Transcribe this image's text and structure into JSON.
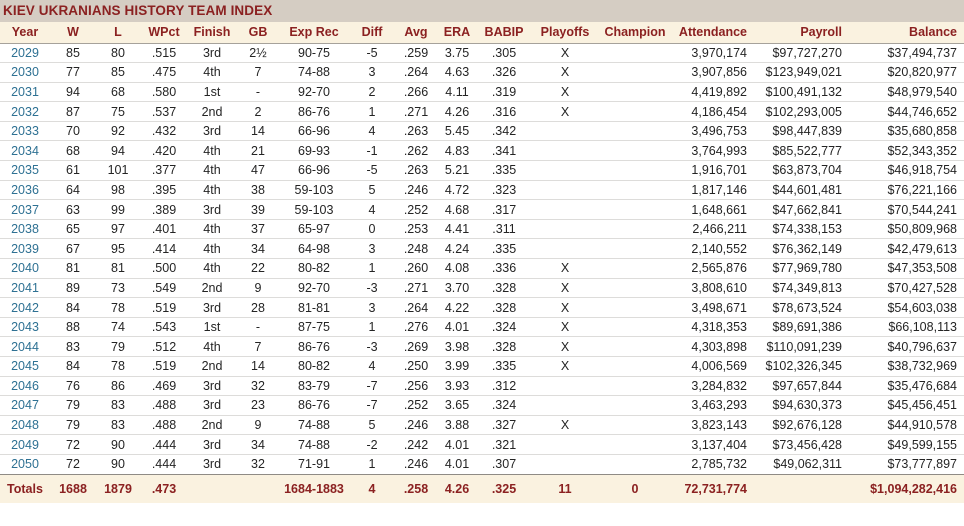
{
  "title": "KIEV UKRANIANS HISTORY TEAM INDEX",
  "colors": {
    "title_bar_bg": "#d5cdc3",
    "header_bg": "#faf2e0",
    "accent_maroon": "#8b2121",
    "year_link_blue": "#2e7193",
    "row_bg": "#ffffff"
  },
  "table": {
    "columns": [
      {
        "key": "year",
        "label": "Year",
        "align": "center"
      },
      {
        "key": "w",
        "label": "W",
        "align": "center"
      },
      {
        "key": "l",
        "label": "L",
        "align": "center"
      },
      {
        "key": "wpct",
        "label": "WPct",
        "align": "center"
      },
      {
        "key": "finish",
        "label": "Finish",
        "align": "center"
      },
      {
        "key": "gb",
        "label": "GB",
        "align": "center"
      },
      {
        "key": "exprec",
        "label": "Exp Rec",
        "align": "center"
      },
      {
        "key": "diff",
        "label": "Diff",
        "align": "center"
      },
      {
        "key": "avg",
        "label": "Avg",
        "align": "center"
      },
      {
        "key": "era",
        "label": "ERA",
        "align": "center"
      },
      {
        "key": "babip",
        "label": "BABIP",
        "align": "center"
      },
      {
        "key": "playoffs",
        "label": "Playoffs",
        "align": "center"
      },
      {
        "key": "champion",
        "label": "Champion",
        "align": "center"
      },
      {
        "key": "attendance",
        "label": "Attendance",
        "align": "right"
      },
      {
        "key": "payroll",
        "label": "Payroll",
        "align": "right"
      },
      {
        "key": "balance",
        "label": "Balance",
        "align": "right"
      }
    ],
    "rows": [
      [
        "2029",
        "85",
        "80",
        ".515",
        "3rd",
        "2½",
        "90-75",
        "-5",
        ".259",
        "3.75",
        ".305",
        "X",
        "",
        "3,970,174",
        "$97,727,270",
        "$37,494,737"
      ],
      [
        "2030",
        "77",
        "85",
        ".475",
        "4th",
        "7",
        "74-88",
        "3",
        ".264",
        "4.63",
        ".326",
        "X",
        "",
        "3,907,856",
        "$123,949,021",
        "$20,820,977"
      ],
      [
        "2031",
        "94",
        "68",
        ".580",
        "1st",
        "-",
        "92-70",
        "2",
        ".266",
        "4.11",
        ".319",
        "X",
        "",
        "4,419,892",
        "$100,491,132",
        "$48,979,540"
      ],
      [
        "2032",
        "87",
        "75",
        ".537",
        "2nd",
        "2",
        "86-76",
        "1",
        ".271",
        "4.26",
        ".316",
        "X",
        "",
        "4,186,454",
        "$102,293,005",
        "$44,746,652"
      ],
      [
        "2033",
        "70",
        "92",
        ".432",
        "3rd",
        "14",
        "66-96",
        "4",
        ".263",
        "5.45",
        ".342",
        "",
        "",
        "3,496,753",
        "$98,447,839",
        "$35,680,858"
      ],
      [
        "2034",
        "68",
        "94",
        ".420",
        "4th",
        "21",
        "69-93",
        "-1",
        ".262",
        "4.83",
        ".341",
        "",
        "",
        "3,764,993",
        "$85,522,777",
        "$52,343,352"
      ],
      [
        "2035",
        "61",
        "101",
        ".377",
        "4th",
        "47",
        "66-96",
        "-5",
        ".263",
        "5.21",
        ".335",
        "",
        "",
        "1,916,701",
        "$63,873,704",
        "$46,918,754"
      ],
      [
        "2036",
        "64",
        "98",
        ".395",
        "4th",
        "38",
        "59-103",
        "5",
        ".246",
        "4.72",
        ".323",
        "",
        "",
        "1,817,146",
        "$44,601,481",
        "$76,221,166"
      ],
      [
        "2037",
        "63",
        "99",
        ".389",
        "3rd",
        "39",
        "59-103",
        "4",
        ".252",
        "4.68",
        ".317",
        "",
        "",
        "1,648,661",
        "$47,662,841",
        "$70,544,241"
      ],
      [
        "2038",
        "65",
        "97",
        ".401",
        "4th",
        "37",
        "65-97",
        "0",
        ".253",
        "4.41",
        ".311",
        "",
        "",
        "2,466,211",
        "$74,338,153",
        "$50,809,968"
      ],
      [
        "2039",
        "67",
        "95",
        ".414",
        "4th",
        "34",
        "64-98",
        "3",
        ".248",
        "4.24",
        ".335",
        "",
        "",
        "2,140,552",
        "$76,362,149",
        "$42,479,613"
      ],
      [
        "2040",
        "81",
        "81",
        ".500",
        "4th",
        "22",
        "80-82",
        "1",
        ".260",
        "4.08",
        ".336",
        "X",
        "",
        "2,565,876",
        "$77,969,780",
        "$47,353,508"
      ],
      [
        "2041",
        "89",
        "73",
        ".549",
        "2nd",
        "9",
        "92-70",
        "-3",
        ".271",
        "3.70",
        ".328",
        "X",
        "",
        "3,808,610",
        "$74,349,813",
        "$70,427,528"
      ],
      [
        "2042",
        "84",
        "78",
        ".519",
        "3rd",
        "28",
        "81-81",
        "3",
        ".264",
        "4.22",
        ".328",
        "X",
        "",
        "3,498,671",
        "$78,673,524",
        "$54,603,038"
      ],
      [
        "2043",
        "88",
        "74",
        ".543",
        "1st",
        "-",
        "87-75",
        "1",
        ".276",
        "4.01",
        ".324",
        "X",
        "",
        "4,318,353",
        "$89,691,386",
        "$66,108,113"
      ],
      [
        "2044",
        "83",
        "79",
        ".512",
        "4th",
        "7",
        "86-76",
        "-3",
        ".269",
        "3.98",
        ".328",
        "X",
        "",
        "4,303,898",
        "$110,091,239",
        "$40,796,637"
      ],
      [
        "2045",
        "84",
        "78",
        ".519",
        "2nd",
        "14",
        "80-82",
        "4",
        ".250",
        "3.99",
        ".335",
        "X",
        "",
        "4,006,569",
        "$102,326,345",
        "$38,732,969"
      ],
      [
        "2046",
        "76",
        "86",
        ".469",
        "3rd",
        "32",
        "83-79",
        "-7",
        ".256",
        "3.93",
        ".312",
        "",
        "",
        "3,284,832",
        "$97,657,844",
        "$35,476,684"
      ],
      [
        "2047",
        "79",
        "83",
        ".488",
        "3rd",
        "23",
        "86-76",
        "-7",
        ".252",
        "3.65",
        ".324",
        "",
        "",
        "3,463,293",
        "$94,630,373",
        "$45,456,451"
      ],
      [
        "2048",
        "79",
        "83",
        ".488",
        "2nd",
        "9",
        "74-88",
        "5",
        ".246",
        "3.88",
        ".327",
        "X",
        "",
        "3,823,143",
        "$92,676,128",
        "$44,910,578"
      ],
      [
        "2049",
        "72",
        "90",
        ".444",
        "3rd",
        "34",
        "74-88",
        "-2",
        ".242",
        "4.01",
        ".321",
        "",
        "",
        "3,137,404",
        "$73,456,428",
        "$49,599,155"
      ],
      [
        "2050",
        "72",
        "90",
        ".444",
        "3rd",
        "32",
        "71-91",
        "1",
        ".246",
        "4.01",
        ".307",
        "",
        "",
        "2,785,732",
        "$49,062,311",
        "$73,777,897"
      ]
    ],
    "totals": [
      "Totals",
      "1688",
      "1879",
      ".473",
      "",
      "",
      "1684-1883",
      "4",
      ".258",
      "4.26",
      ".325",
      "11",
      "0",
      "72,731,774",
      "",
      "$1,094,282,416"
    ]
  }
}
